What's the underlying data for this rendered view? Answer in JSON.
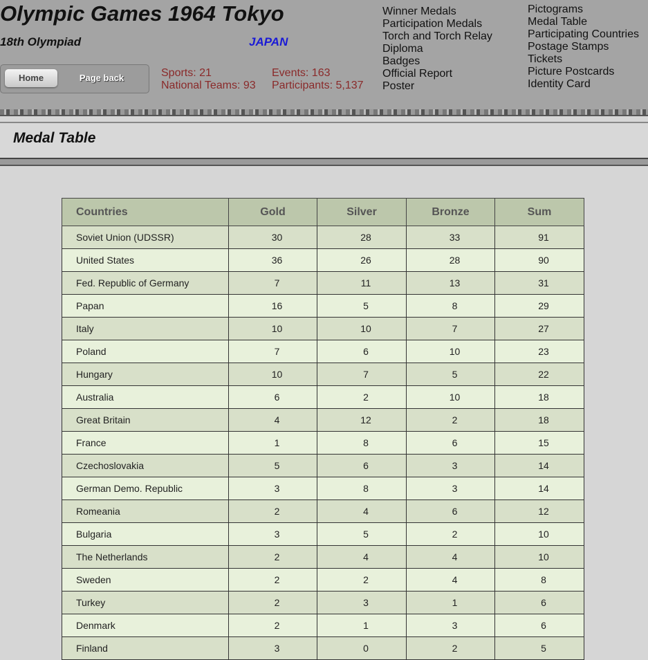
{
  "header": {
    "title": "Olympic Games 1964 Tokyo",
    "subtitle": "18th Olympiad",
    "country": "JAPAN",
    "buttons": [
      "Home",
      "Page back"
    ],
    "stats": [
      "Sports: 21",
      "National Teams: 93",
      "Events: 163",
      "Participants: 5,137"
    ],
    "nav_left": [
      "Winner Medals",
      "Participation Medals",
      "Torch and Torch Relay",
      "Diploma",
      "Badges",
      "Official Report",
      "Poster"
    ],
    "nav_right": [
      "Pictograms",
      "Medal Table",
      "Participating Countries",
      "Postage Stamps",
      "Tickets",
      "Picture Postcards",
      "Identity Card"
    ]
  },
  "section": {
    "title": "Medal Table"
  },
  "table": {
    "columns": [
      "Countries",
      "Gold",
      "Silver",
      "Bronze",
      "Sum"
    ],
    "rows": [
      [
        "Soviet Union (UDSSR)",
        30,
        28,
        33,
        91
      ],
      [
        "United States",
        36,
        26,
        28,
        90
      ],
      [
        "Fed. Republic of Germany",
        7,
        11,
        13,
        31
      ],
      [
        "Papan",
        16,
        5,
        8,
        29
      ],
      [
        "Italy",
        10,
        10,
        7,
        27
      ],
      [
        "Poland",
        7,
        6,
        10,
        23
      ],
      [
        "Hungary",
        10,
        7,
        5,
        22
      ],
      [
        "Australia",
        6,
        2,
        10,
        18
      ],
      [
        "Great Britain",
        4,
        12,
        2,
        18
      ],
      [
        "France",
        1,
        8,
        6,
        15
      ],
      [
        "Czechoslovakia",
        5,
        6,
        3,
        14
      ],
      [
        "German Demo. Republic",
        3,
        8,
        3,
        14
      ],
      [
        "Romeania",
        2,
        4,
        6,
        12
      ],
      [
        "Bulgaria",
        3,
        5,
        2,
        10
      ],
      [
        "The Netherlands",
        2,
        4,
        4,
        10
      ],
      [
        "Sweden",
        2,
        2,
        4,
        8
      ],
      [
        "Turkey",
        2,
        3,
        1,
        6
      ],
      [
        "Denmark",
        2,
        1,
        3,
        6
      ],
      [
        "Finland",
        3,
        0,
        2,
        5
      ]
    ]
  }
}
